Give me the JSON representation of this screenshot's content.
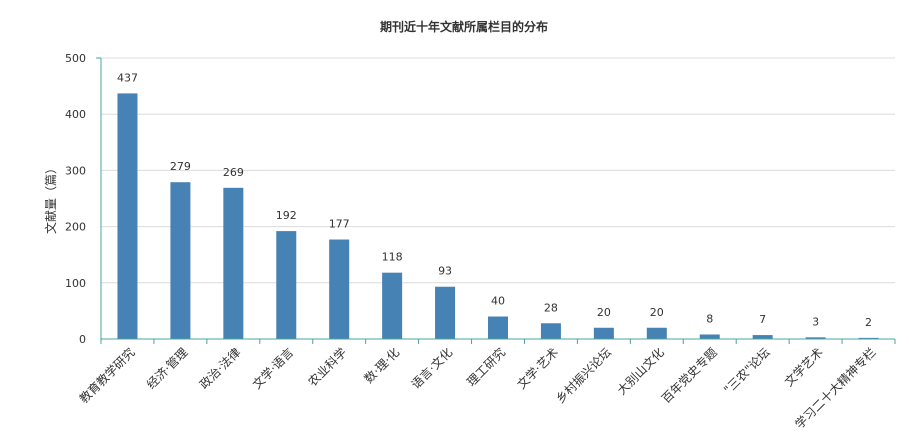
{
  "chart_data": {
    "type": "bar",
    "title": "期刊近十年文献所属栏目的分布",
    "xlabel": "",
    "ylabel": "文献量（篇）",
    "ylim": [
      0,
      500
    ],
    "yticks": [
      0,
      100,
      200,
      300,
      400,
      500
    ],
    "grid": true,
    "legend": "none",
    "bar_color": "#4682b4",
    "axis_color": "#4aa3a3",
    "categories": [
      "教育教学研究",
      "经济·管理",
      "政治·法律",
      "文学·语言",
      "农业科学",
      "数·理·化",
      "语言·文化",
      "理工研究",
      "文学·艺术",
      "乡村振兴论坛",
      "大别山文化",
      "百年党史专题",
      "\"三农\"论坛",
      "文学艺术",
      "学习二十大精神专栏"
    ],
    "values": [
      437,
      279,
      269,
      192,
      177,
      118,
      93,
      40,
      28,
      20,
      20,
      8,
      7,
      3,
      2
    ]
  }
}
